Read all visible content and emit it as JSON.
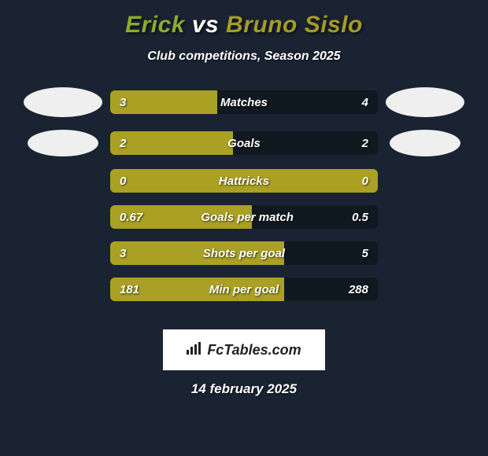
{
  "title": {
    "player1": "Erick",
    "vs": "vs",
    "player2": "Bruno Sislo"
  },
  "subtitle": "Club competitions, Season 2025",
  "colors": {
    "left_bar": "#aaa024",
    "right_bar": "#8a9b24",
    "player1_text": "#8aad2a",
    "player2_text": "#a59c24",
    "background": "#1a2332",
    "row_bg": "#101820"
  },
  "stats": [
    {
      "label": "Matches",
      "left_val": "3",
      "right_val": "4",
      "left_pct": 40,
      "right_pct": 0,
      "show_avatar": true,
      "avatar_size": "primary"
    },
    {
      "label": "Goals",
      "left_val": "2",
      "right_val": "2",
      "left_pct": 46,
      "right_pct": 0,
      "show_avatar": true,
      "avatar_size": "secondary"
    },
    {
      "label": "Hattricks",
      "left_val": "0",
      "right_val": "0",
      "left_pct": 100,
      "right_pct": 0,
      "show_avatar": false
    },
    {
      "label": "Goals per match",
      "left_val": "0.67",
      "right_val": "0.5",
      "left_pct": 53,
      "right_pct": 0,
      "show_avatar": false
    },
    {
      "label": "Shots per goal",
      "left_val": "3",
      "right_val": "5",
      "left_pct": 65,
      "right_pct": 0,
      "show_avatar": false
    },
    {
      "label": "Min per goal",
      "left_val": "181",
      "right_val": "288",
      "left_pct": 65,
      "right_pct": 0,
      "show_avatar": false
    }
  ],
  "logo": {
    "text": "FcTables.com",
    "icon": "chart-icon"
  },
  "date": "14 february 2025"
}
